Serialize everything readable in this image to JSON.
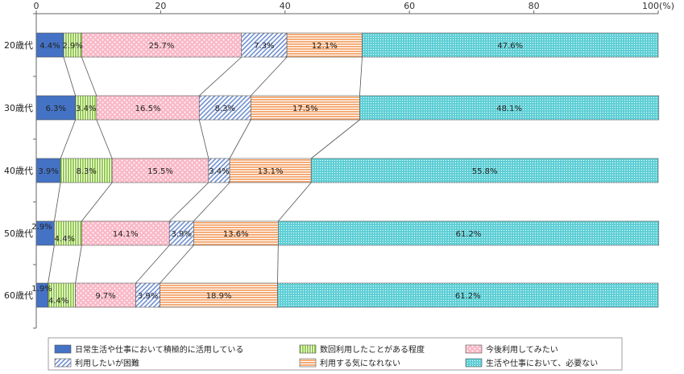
{
  "chart_data": {
    "type": "bar",
    "stacked": true,
    "orientation": "horizontal",
    "title": "",
    "xlabel": "",
    "ylabel": "",
    "x_unit": "(%)",
    "xlim": [
      0,
      100
    ],
    "x_ticks": [
      "0",
      "20",
      "40",
      "60",
      "80",
      "100"
    ],
    "grid": false,
    "legend_position": "bottom",
    "categories": [
      "20歳代",
      "30歳代",
      "40歳代",
      "50歳代",
      "60歳代"
    ],
    "series": [
      {
        "name": "日常生活や仕事において積極的に活用している",
        "color": "#4472c4",
        "pattern": "solid",
        "values": [
          4.4,
          6.3,
          3.9,
          2.9,
          1.9
        ],
        "labels": [
          "4.4%",
          "6.3%",
          "3.9%",
          "2.9%",
          "1.9%"
        ]
      },
      {
        "name": "数回利用したことがある程度",
        "color": "#9bd35a",
        "pattern": "vertical-lines",
        "values": [
          2.9,
          3.4,
          8.3,
          4.4,
          4.4
        ],
        "labels": [
          "2.9%",
          "3.4%",
          "8.3%",
          "4.4%",
          "4.4%"
        ]
      },
      {
        "name": "今後利用してみたい",
        "color": "#f8b4c4",
        "pattern": "dots",
        "values": [
          25.7,
          16.5,
          15.5,
          14.1,
          9.7
        ],
        "labels": [
          "25.7%",
          "16.5%",
          "15.5%",
          "14.1%",
          "9.7%"
        ]
      },
      {
        "name": "利用したいが困難",
        "color": "#8ea9db",
        "pattern": "diagonal-lines",
        "values": [
          7.3,
          8.3,
          3.4,
          3.9,
          3.9
        ],
        "labels": [
          "7.3%",
          "8.3%",
          "3.4%",
          "3.9%",
          "3.9%"
        ]
      },
      {
        "name": "利用する気になれない",
        "color": "#f4b183",
        "pattern": "horizontal-lines",
        "values": [
          12.1,
          17.5,
          13.1,
          13.6,
          18.9
        ],
        "labels": [
          "12.1%",
          "17.5%",
          "13.1%",
          "13.6%",
          "18.9%"
        ]
      },
      {
        "name": "生活や仕事において、必要ない",
        "color": "#5fcfd6",
        "pattern": "fine-grid",
        "values": [
          47.6,
          48.1,
          55.8,
          61.2,
          61.2
        ],
        "labels": [
          "47.6%",
          "48.1%",
          "55.8%",
          "61.2%",
          "61.2%"
        ]
      }
    ]
  }
}
